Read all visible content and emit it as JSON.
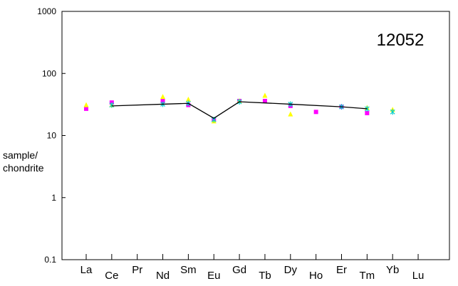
{
  "chart_data": {
    "type": "scatter",
    "title": "12052",
    "ylabel_lines": [
      "sample/",
      "chondrite"
    ],
    "xlabel": "",
    "yscale": "log",
    "ylim": [
      0.1,
      1000
    ],
    "yticks": [
      "0.1",
      "1",
      "10",
      "100",
      "1000"
    ],
    "categories": [
      "La",
      "Ce",
      "Pr",
      "Nd",
      "Sm",
      "Eu",
      "Gd",
      "Tb",
      "Dy",
      "Ho",
      "Er",
      "Tm",
      "Yb",
      "Lu"
    ],
    "grid": false,
    "series": [
      {
        "name": "pink squares",
        "marker": "square",
        "color": "#ff00ff",
        "points": [
          [
            0,
            27
          ],
          [
            1,
            34
          ],
          [
            3,
            36
          ],
          [
            4,
            31
          ],
          [
            5,
            18
          ],
          [
            6,
            36
          ],
          [
            7,
            36
          ],
          [
            8,
            30
          ],
          [
            9,
            24
          ],
          [
            10,
            29
          ],
          [
            11,
            23
          ]
        ]
      },
      {
        "name": "yellow triangles",
        "marker": "triangle",
        "color": "#ffff00",
        "points": [
          [
            0,
            31
          ],
          [
            1,
            31
          ],
          [
            3,
            42
          ],
          [
            4,
            38
          ],
          [
            5,
            17
          ],
          [
            6,
            36
          ],
          [
            7,
            44
          ],
          [
            8,
            22
          ],
          [
            11,
            28
          ],
          [
            12,
            26
          ]
        ]
      },
      {
        "name": "cyan crosses",
        "marker": "star",
        "color": "#00cccc",
        "points": [
          [
            1,
            31
          ],
          [
            3,
            32
          ],
          [
            4,
            33
          ],
          [
            5,
            18
          ],
          [
            6,
            35
          ],
          [
            8,
            32
          ],
          [
            10,
            29
          ],
          [
            11,
            27
          ],
          [
            12,
            24
          ]
        ]
      },
      {
        "name": "line",
        "marker": "line",
        "color": "#000000",
        "points": [
          [
            1,
            30
          ],
          [
            3,
            32
          ],
          [
            4,
            33
          ],
          [
            5,
            19
          ],
          [
            6,
            35
          ],
          [
            8,
            32
          ],
          [
            10,
            29
          ],
          [
            11,
            27
          ]
        ]
      }
    ]
  }
}
